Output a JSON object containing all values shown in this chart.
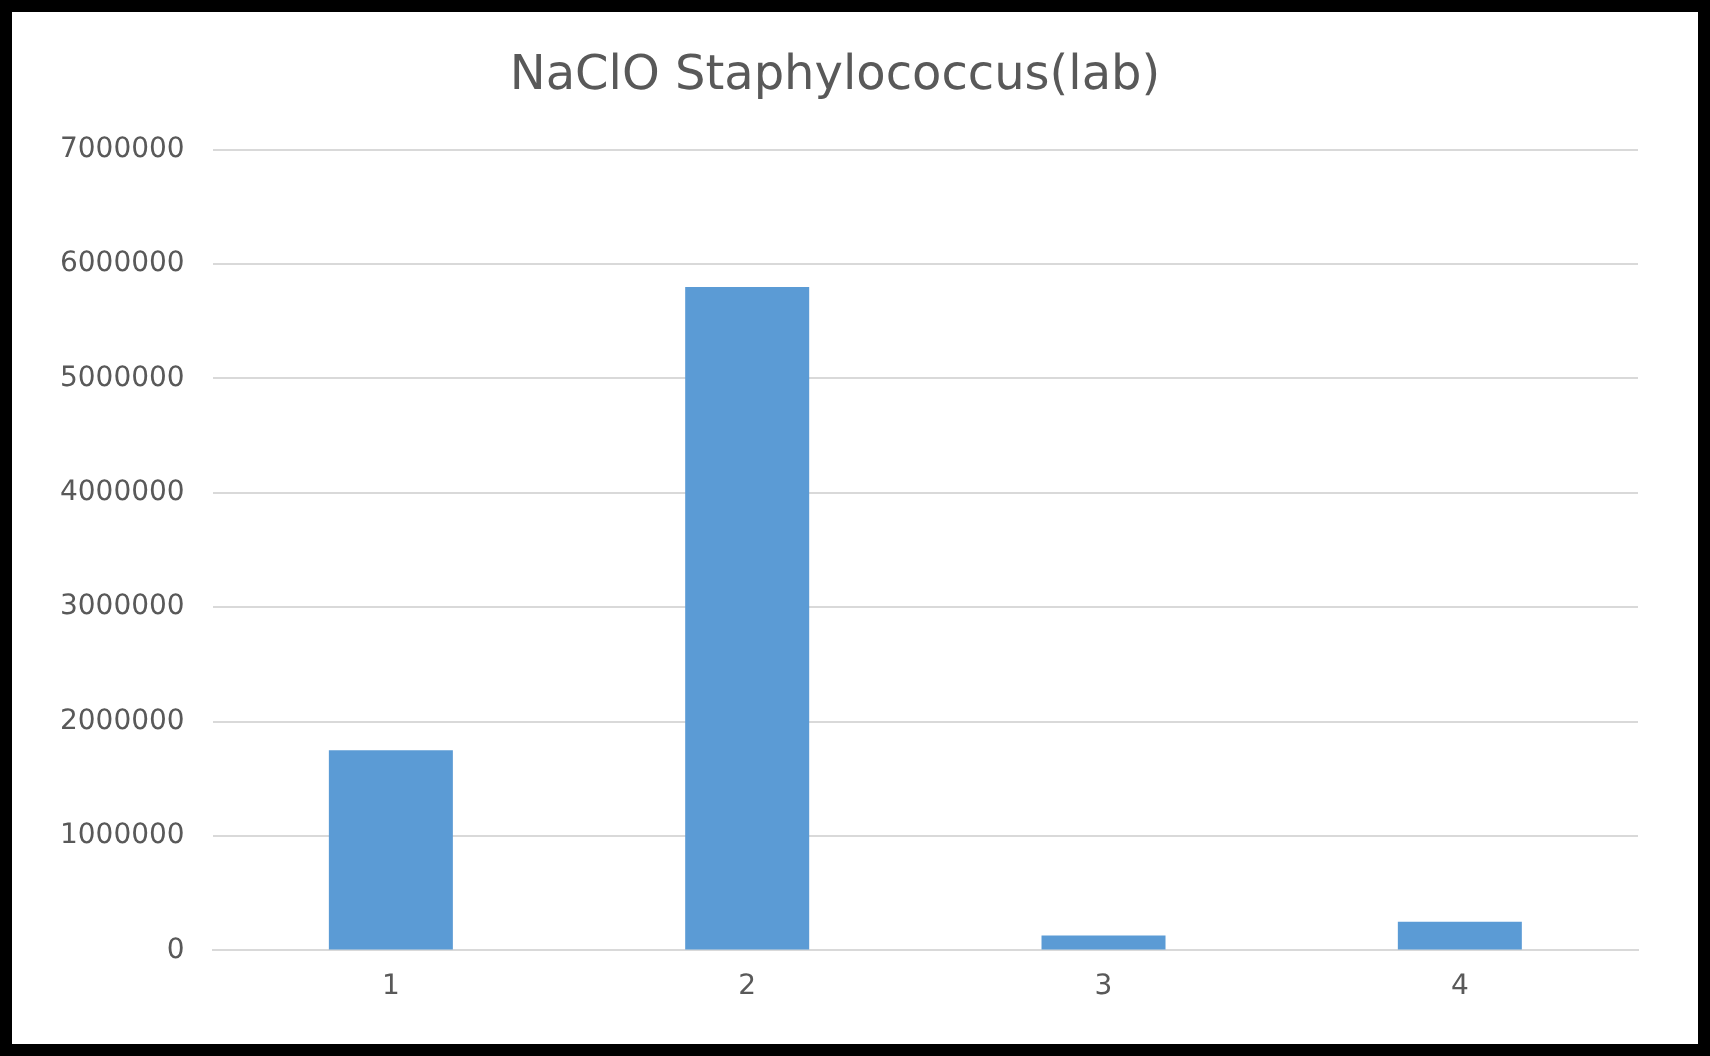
{
  "chart_data": {
    "type": "bar",
    "title": "NaClO Staphylococcus(lab)",
    "categories": [
      "1",
      "2",
      "3",
      "4"
    ],
    "values": [
      1750000,
      5800000,
      130000,
      250000
    ],
    "color": "#5b9bd5",
    "ylim": [
      0,
      7000000
    ],
    "yticks": [
      0,
      1000000,
      2000000,
      3000000,
      4000000,
      5000000,
      6000000,
      7000000
    ],
    "grid": "y"
  }
}
